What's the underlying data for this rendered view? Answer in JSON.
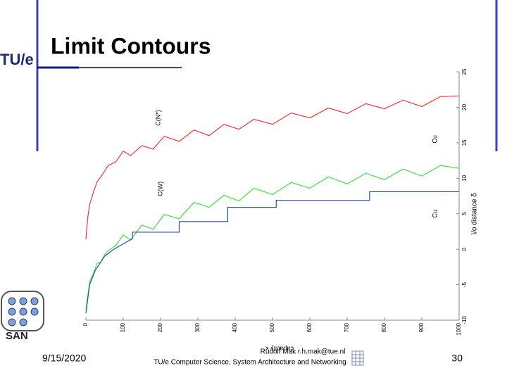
{
  "header": {
    "title": "Limit Contours",
    "logo": "TU/e"
  },
  "chart_data": {
    "type": "line",
    "x_label": "capacity κ",
    "y_label": "i/o distance δ",
    "annotations": [
      "C(N*)",
      "C(W)",
      "Cu",
      "Cu"
    ],
    "x": [
      0,
      5,
      10,
      20,
      30,
      40,
      50,
      60,
      80,
      100,
      120,
      150,
      180,
      210,
      250,
      290,
      330,
      370,
      410,
      450,
      500,
      550,
      600,
      650,
      700,
      750,
      800,
      850,
      900,
      950,
      1000
    ],
    "series": [
      {
        "color": "#e8393a",
        "values": [
          1.4,
          4.5,
          6.3,
          8,
          9.5,
          10.2,
          11,
          11.8,
          12.3,
          13.8,
          13.2,
          14.6,
          14.1,
          15.9,
          15.2,
          16.8,
          16,
          17.6,
          16.9,
          18.3,
          17.6,
          19.2,
          18.5,
          19.9,
          19.1,
          20.5,
          19.8,
          21,
          20.1,
          21.5,
          21.6
        ]
      },
      {
        "color": "#3ee23e",
        "values": [
          -8.5,
          -6.5,
          -4.6,
          -3.4,
          -2,
          -1.8,
          -0.8,
          -0.2,
          0.5,
          2,
          1.3,
          3.4,
          2.8,
          4.9,
          4.3,
          6.6,
          5.9,
          7.6,
          6.8,
          8.6,
          7.7,
          9.4,
          8.6,
          10.2,
          9.2,
          10.7,
          9.8,
          11.3,
          10.3,
          11.8,
          11.4
        ]
      },
      {
        "color": "#2a4fb0",
        "x": [
          0,
          10,
          25,
          50,
          75,
          125,
          125,
          250,
          250,
          380,
          380,
          510,
          510,
          760,
          760,
          1000
        ],
        "values": [
          -9,
          -5,
          -3,
          -1,
          0,
          1.5,
          2.4,
          2.4,
          3.9,
          3.9,
          5.9,
          5.9,
          6.9,
          6.9,
          8.1,
          8.1
        ]
      }
    ],
    "xlim": [
      0,
      1000
    ],
    "xticks": [
      0,
      100,
      200,
      300,
      400,
      500,
      600,
      700,
      800,
      900,
      1000
    ],
    "ylim": [
      -10,
      25
    ],
    "yticks": [
      -10,
      -5,
      0,
      5,
      10,
      15,
      20,
      25
    ]
  },
  "footer": {
    "date": "9/15/2020",
    "author": "Rudolf Mak r.h.mak@tue.nl",
    "department": "TU/e Computer Science, System Architecture and Networking",
    "page": "30",
    "logo": "SAN"
  }
}
